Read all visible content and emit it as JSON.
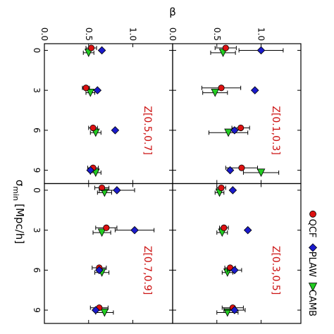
{
  "chart_data": {
    "type": "scatter",
    "orientation_note": "figure is rotated 90 degrees clockwise",
    "y_axis_label": "β",
    "x_axis_label": "σ",
    "x_axis_subscript": "min",
    "x_axis_unit": "[Mpc/h]",
    "xlim": [
      -0.5,
      10
    ],
    "ylim": [
      0.0,
      1.45
    ],
    "x_ticks": [
      0,
      3,
      6,
      9
    ],
    "y_ticks": [
      0.0,
      0.5,
      1.0
    ],
    "y_tick_labels": [
      "0.0",
      "0.5",
      "1.0"
    ],
    "legend": {
      "placement": "top (rotated)",
      "entries": [
        {
          "name": "CAMB",
          "marker": "triangle",
          "color": "#22cc22"
        },
        {
          "name": "PLAW",
          "marker": "diamond",
          "color": "#1a1acc"
        },
        {
          "name": "QCF",
          "marker": "circle",
          "color": "#dd1111"
        }
      ]
    },
    "panels": [
      {
        "label": "Z[0.1,0.3]",
        "position": "top-left",
        "series": [
          {
            "name": "CAMB",
            "x": [
              0,
              3,
              6,
              9
            ],
            "y": [
              0.57,
              0.48,
              0.63,
              1.0
            ],
            "err": [
              0.14,
              0.14,
              0.22,
              0.2
            ]
          },
          {
            "name": "PLAW",
            "x": [
              0,
              3,
              6,
              9
            ],
            "y": [
              1.0,
              0.93,
              0.7,
              0.65
            ],
            "err": [
              0.25,
              0.0,
              0.0,
              0.0
            ]
          },
          {
            "name": "QCF",
            "x": [
              0,
              3,
              6,
              9
            ],
            "y": [
              0.6,
              0.55,
              0.77,
              0.78
            ],
            "err": [
              0.12,
              0.22,
              0.1,
              0.18
            ]
          }
        ]
      },
      {
        "label": "Z[0.3,0.5]",
        "position": "top-right",
        "series": [
          {
            "name": "CAMB",
            "x": [
              0,
              3,
              6,
              9
            ],
            "y": [
              0.53,
              0.56,
              0.62,
              0.62
            ],
            "err": [
              0.05,
              0.06,
              0.06,
              0.12
            ]
          },
          {
            "name": "PLAW",
            "x": [
              0,
              3,
              6,
              9
            ],
            "y": [
              0.68,
              0.85,
              0.7,
              0.7
            ],
            "err": [
              0.0,
              0.0,
              0.08,
              0.12
            ]
          },
          {
            "name": "QCF",
            "x": [
              0,
              3,
              6,
              9
            ],
            "y": [
              0.55,
              0.58,
              0.65,
              0.68
            ],
            "err": [
              0.05,
              0.05,
              0.06,
              0.12
            ]
          }
        ]
      },
      {
        "label": "Z[0.5,0.7]",
        "position": "bottom-left",
        "series": [
          {
            "name": "CAMB",
            "x": [
              0,
              3,
              6,
              9
            ],
            "y": [
              0.5,
              0.52,
              0.58,
              0.58
            ],
            "err": [
              0.06,
              0.05,
              0.06,
              0.06
            ]
          },
          {
            "name": "PLAW",
            "x": [
              0,
              3,
              6,
              9
            ],
            "y": [
              0.65,
              0.6,
              0.8,
              0.52
            ],
            "err": [
              0.0,
              0.0,
              0.0,
              0.0
            ]
          },
          {
            "name": "QCF",
            "x": [
              0,
              3,
              6,
              9
            ],
            "y": [
              0.53,
              0.47,
              0.55,
              0.55
            ],
            "err": [
              0.06,
              0.04,
              0.05,
              0.06
            ]
          }
        ]
      },
      {
        "label": "Z[0.7,0.9]",
        "position": "bottom-right",
        "series": [
          {
            "name": "CAMB",
            "x": [
              0,
              3,
              6,
              9
            ],
            "y": [
              0.68,
              0.65,
              0.65,
              0.68
            ],
            "err": [
              0.08,
              0.1,
              0.08,
              0.1
            ]
          },
          {
            "name": "PLAW",
            "x": [
              0,
              3,
              6,
              9
            ],
            "y": [
              0.82,
              1.02,
              0.62,
              0.58
            ],
            "err": [
              0.2,
              0.22,
              0.0,
              0.0
            ]
          },
          {
            "name": "QCF",
            "x": [
              0,
              3,
              6,
              9
            ],
            "y": [
              0.65,
              0.7,
              0.62,
              0.62
            ],
            "err": [
              0.08,
              0.12,
              0.08,
              0.1
            ]
          }
        ]
      }
    ]
  }
}
